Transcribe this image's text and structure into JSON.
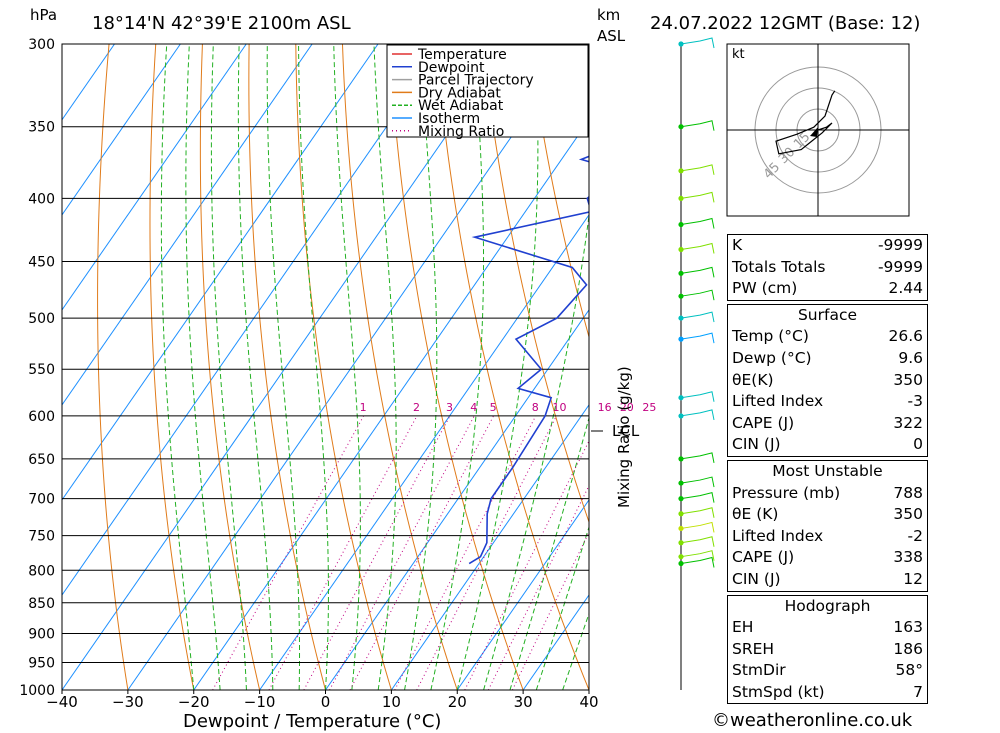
{
  "header": {
    "location": "18°14'N  42°39'E  2100m  ASL",
    "date": "24.07.2022  12GMT  (Base: 12)",
    "unit_left": "hPa",
    "unit_km": "km",
    "unit_asl": "ASL"
  },
  "chart_data": {
    "type": "line",
    "title": "",
    "xlabel": "Dewpoint / Temperature (°C)",
    "ylabel": "hPa",
    "right_axis_label": "Mixing Ratio (g/kg)",
    "x_ticks": [
      -40,
      -30,
      -20,
      -10,
      0,
      10,
      20,
      30,
      40
    ],
    "x_tick_labels": [
      "−40",
      "−30",
      "−20",
      "−10",
      "0",
      "10",
      "20",
      "30",
      "40"
    ],
    "y_ticks": [
      300,
      350,
      400,
      450,
      500,
      550,
      600,
      650,
      700,
      750,
      800,
      850,
      900,
      950,
      1000
    ],
    "y_tick_labels": [
      "300",
      "350",
      "400",
      "450",
      "500",
      "550",
      "600",
      "650",
      "700",
      "750",
      "800",
      "850",
      "900",
      "950",
      "1000"
    ],
    "xlim": [
      -40,
      40
    ],
    "ylim": [
      1000,
      300
    ],
    "skew_deg_per_log_decade": 130,
    "mixing_ratio_labels": [
      "1",
      "2",
      "3",
      "4",
      "5",
      "8",
      "10",
      "16",
      "20",
      "25"
    ],
    "mixing_ratio_values": [
      1,
      2,
      3,
      4,
      5,
      8,
      10,
      16,
      20,
      25
    ],
    "lcl_label": "LCL",
    "lcl_pressure": 622,
    "legend": [
      "Temperature",
      "Dewpoint",
      "Parcel Trajectory",
      "Dry Adiabat",
      "Wet Adiabat",
      "Isotherm",
      "Mixing Ratio"
    ],
    "legend_position": "top-right",
    "series": [
      {
        "name": "Temperature",
        "color": "#e03030",
        "points": [
          [
            790,
            34.5
          ],
          [
            780,
            33
          ],
          [
            760,
            31.5
          ],
          [
            720,
            29.5
          ],
          [
            680,
            27
          ],
          [
            640,
            24.5
          ],
          [
            600,
            21
          ],
          [
            585,
            19.5
          ],
          [
            575,
            19.8
          ],
          [
            555,
            18
          ],
          [
            530,
            16.5
          ],
          [
            500,
            14.5
          ],
          [
            470,
            12.5
          ],
          [
            450,
            11.5
          ],
          [
            420,
            9.5
          ],
          [
            400,
            8.5
          ],
          [
            380,
            6
          ],
          [
            365,
            3.5
          ]
        ]
      },
      {
        "name": "Dewpoint",
        "color": "#2040d0",
        "points": [
          [
            790,
            8.5
          ],
          [
            780,
            9.5
          ],
          [
            760,
            9
          ],
          [
            720,
            6
          ],
          [
            700,
            5
          ],
          [
            660,
            5
          ],
          [
            600,
            4.5
          ],
          [
            580,
            3.5
          ],
          [
            570,
            -2.5
          ],
          [
            550,
            -1
          ],
          [
            520,
            -8
          ],
          [
            500,
            -4
          ],
          [
            470,
            -3
          ],
          [
            455,
            -7
          ],
          [
            430,
            -25
          ],
          [
            410,
            -10
          ],
          [
            400,
            -12
          ],
          [
            380,
            -10
          ],
          [
            372,
            -17
          ],
          [
            360,
            -12
          ],
          [
            355,
            -8
          ],
          [
            350,
            -12
          ],
          [
            340,
            -28
          ],
          [
            330,
            -38
          ],
          [
            310,
            -18
          ],
          [
            300,
            -15
          ]
        ]
      },
      {
        "name": "Parcel Trajectory",
        "color": "#a0a0a0",
        "points": [
          [
            790,
            33
          ],
          [
            760,
            30.5
          ],
          [
            720,
            28
          ],
          [
            680,
            25.5
          ],
          [
            622,
            22.5
          ],
          [
            600,
            21.5
          ],
          [
            560,
            20.5
          ],
          [
            520,
            18.5
          ],
          [
            480,
            16.5
          ],
          [
            440,
            13.5
          ],
          [
            400,
            9.5
          ],
          [
            365,
            5.5
          ]
        ]
      }
    ]
  },
  "hodograph": {
    "unit": "kt",
    "ring_labels": [
      "15",
      "30",
      "45"
    ],
    "storm_dir_deg": 58,
    "storm_speed_kt": 7,
    "trace_kt": [
      [
        0,
        0
      ],
      [
        6,
        2
      ],
      [
        10,
        5
      ],
      [
        3,
        -2
      ],
      [
        -2,
        -6
      ],
      [
        -12,
        -14
      ],
      [
        -28,
        -17
      ],
      [
        -30,
        -8
      ],
      [
        -15,
        -3
      ],
      [
        -3,
        2
      ],
      [
        5,
        10
      ],
      [
        10,
        25
      ],
      [
        12,
        28
      ]
    ]
  },
  "wind_profile": {
    "levels_hpa": [
      300,
      350,
      380,
      400,
      420,
      440,
      460,
      480,
      500,
      520,
      580,
      600,
      650,
      680,
      700,
      720,
      740,
      760,
      780,
      790
    ],
    "colors": [
      "#00c0c0",
      "#00c000",
      "#80e000",
      "#80e000",
      "#00c000",
      "#80e000",
      "#00c000",
      "#00c000",
      "#00c0c0",
      "#00a0ff",
      "#00c0c0",
      "#00c0c0",
      "#00c000",
      "#00c000",
      "#00c000",
      "#80e000",
      "#c0e000",
      "#80e000",
      "#80e000",
      "#00c000"
    ]
  },
  "indices": {
    "k_label": "K",
    "k_value": "-9999",
    "tt_label": "Totals Totals",
    "tt_value": "-9999",
    "pw_label": "PW (cm)",
    "pw_value": "2.44"
  },
  "surface": {
    "title": "Surface",
    "temp_label": "Temp (°C)",
    "temp_value": "26.6",
    "dewp_label": "Dewp (°C)",
    "dewp_value": "9.6",
    "theta_label": "θE(K)",
    "theta_value": "350",
    "li_label": "Lifted Index",
    "li_value": "-3",
    "cape_label": "CAPE (J)",
    "cape_value": "322",
    "cin_label": "CIN (J)",
    "cin_value": "0"
  },
  "most_unstable": {
    "title": "Most Unstable",
    "pressure_label": "Pressure (mb)",
    "pressure_value": "788",
    "theta_label": "θE (K)",
    "theta_value": "350",
    "li_label": "Lifted Index",
    "li_value": "-2",
    "cape_label": "CAPE (J)",
    "cape_value": "338",
    "cin_label": "CIN (J)",
    "cin_value": "12"
  },
  "hodograph_table": {
    "title": "Hodograph",
    "eh_label": "EH",
    "eh_value": "163",
    "sreh_label": "SREH",
    "sreh_value": "186",
    "stmdir_label": "StmDir",
    "stmdir_value": "58°",
    "stmspd_label": "StmSpd (kt)",
    "stmspd_value": "7"
  },
  "footer": {
    "copyright": "©weatheronline.co.uk"
  }
}
